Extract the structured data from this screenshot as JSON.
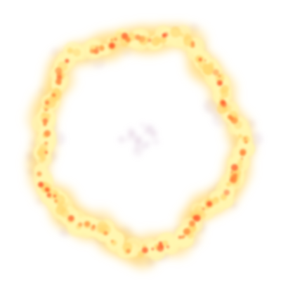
{
  "image": {
    "subject": "fire-ring",
    "colors": {
      "background": "#ffffff",
      "core": "#fff6b0",
      "mid": "#ffd873",
      "hot": "#ff8a3c",
      "ember": "#ff5a2a",
      "haze": "#d9c2d6"
    }
  }
}
